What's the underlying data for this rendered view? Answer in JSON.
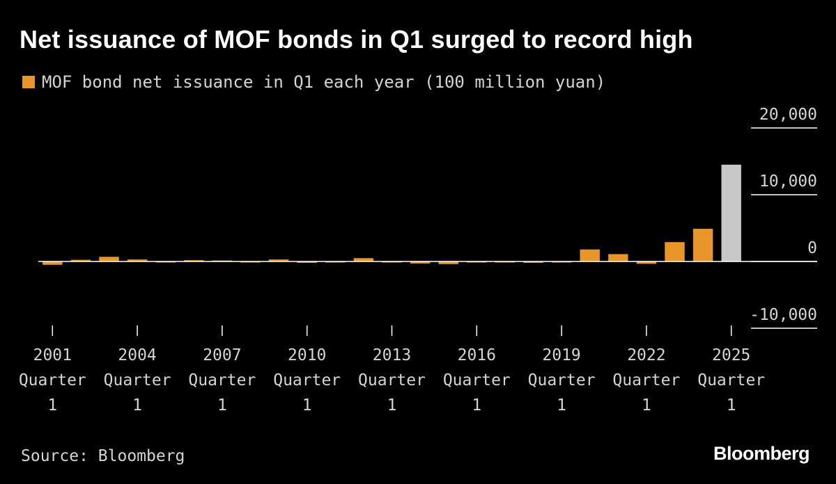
{
  "chart_data": {
    "type": "bar",
    "title": "Net issuance of MOF bonds in Q1 surged to record high",
    "legend": [
      "MOF bond net issuance in Q1 each year (100 million yuan)"
    ],
    "legend_position": "top-left",
    "series": [
      {
        "name": "MOF bond net issuance in Q1 each year (100 million yuan)",
        "color": "#e8962a",
        "highlight_color": "#c8c8c8",
        "highlight_category": "2025 Quarter 1",
        "values": [
          -500,
          250,
          700,
          300,
          -150,
          200,
          150,
          -150,
          300,
          -200,
          -150,
          500,
          -150,
          -300,
          -400,
          -150,
          -150,
          -200,
          -150,
          1800,
          1100,
          -350,
          2900,
          4900,
          14500
        ]
      }
    ],
    "categories": [
      "2001 Quarter 1",
      "2002 Quarter 1",
      "2003 Quarter 1",
      "2004 Quarter 1",
      "2005 Quarter 1",
      "2006 Quarter 1",
      "2007 Quarter 1",
      "2008 Quarter 1",
      "2009 Quarter 1",
      "2010 Quarter 1",
      "2011 Quarter 1",
      "2012 Quarter 1",
      "2013 Quarter 1",
      "2014 Quarter 1",
      "2015 Quarter 1",
      "2016 Quarter 1",
      "2017 Quarter 1",
      "2018 Quarter 1",
      "2019 Quarter 1",
      "2020 Quarter 1",
      "2021 Quarter 1",
      "2022 Quarter 1",
      "2023 Quarter 1",
      "2024 Quarter 1",
      "2025 Quarter 1"
    ],
    "x_tick_labels": [
      {
        "index": 0,
        "lines": [
          "2001",
          "Quarter",
          "1"
        ]
      },
      {
        "index": 3,
        "lines": [
          "2004",
          "Quarter",
          "1"
        ]
      },
      {
        "index": 6,
        "lines": [
          "2007",
          "Quarter",
          "1"
        ]
      },
      {
        "index": 9,
        "lines": [
          "2010",
          "Quarter",
          "1"
        ]
      },
      {
        "index": 12,
        "lines": [
          "2013",
          "Quarter",
          "1"
        ]
      },
      {
        "index": 15,
        "lines": [
          "2016",
          "Quarter",
          "1"
        ]
      },
      {
        "index": 18,
        "lines": [
          "2019",
          "Quarter",
          "1"
        ]
      },
      {
        "index": 21,
        "lines": [
          "2022",
          "Quarter",
          "1"
        ]
      },
      {
        "index": 24,
        "lines": [
          "2025",
          "Quarter",
          "1"
        ]
      }
    ],
    "y_ticks": [
      {
        "value": 20000,
        "label": "20,000"
      },
      {
        "value": 10000,
        "label": "10,000"
      },
      {
        "value": 0,
        "label": "0"
      },
      {
        "value": -10000,
        "label": "-10,000"
      }
    ],
    "ylim": [
      -10000,
      20000
    ],
    "xlabel": "",
    "ylabel": "",
    "y_axis_side": "right",
    "grid": false
  },
  "source": "Source: Bloomberg",
  "logo": "Bloomberg",
  "colors": {
    "background": "#000000",
    "bar": "#e8962a",
    "highlight": "#c8c8c8",
    "text": "#d4d4d4",
    "axis": "#ffffff"
  }
}
